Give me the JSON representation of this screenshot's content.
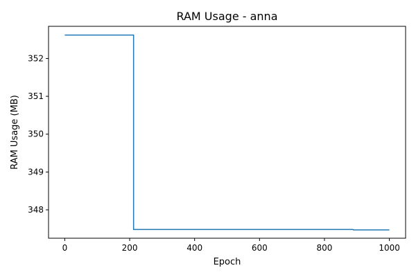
{
  "chart_data": {
    "type": "line",
    "title": "RAM Usage - anna",
    "xlabel": "Epoch",
    "ylabel": "RAM Usage (MB)",
    "xlim": [
      -50,
      1050
    ],
    "ylim": [
      347.25,
      352.85
    ],
    "xticks": [
      0,
      200,
      400,
      600,
      800,
      1000
    ],
    "yticks": [
      348,
      349,
      350,
      351,
      352
    ],
    "grid": false,
    "series": [
      {
        "color": "#1f77b4",
        "x": [
          0,
          212,
          212,
          888,
          889,
          1000
        ],
        "y": [
          352.62,
          352.62,
          347.48,
          347.48,
          347.47,
          347.47
        ]
      }
    ]
  }
}
